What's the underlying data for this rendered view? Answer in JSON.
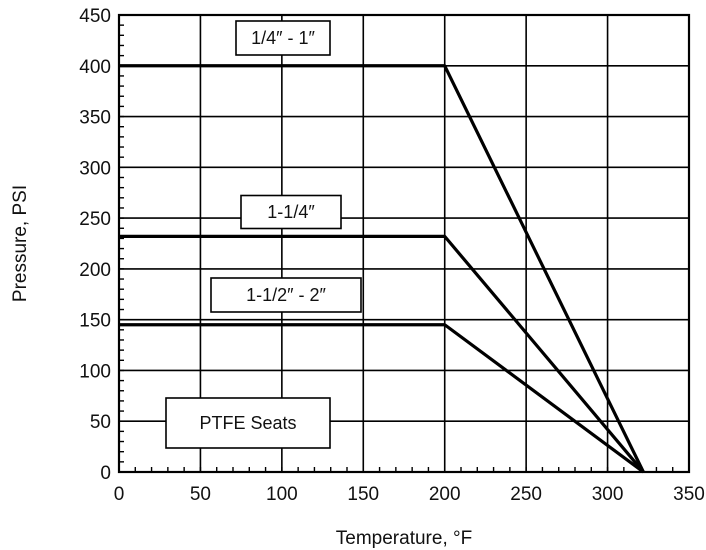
{
  "chart_data": {
    "type": "line",
    "xlabel": "Temperature, °F",
    "ylabel": "Pressure, PSI",
    "xlim": [
      0,
      350
    ],
    "ylim": [
      0,
      450
    ],
    "xticks": [
      0,
      50,
      100,
      150,
      200,
      250,
      300,
      350
    ],
    "yticks": [
      0,
      50,
      100,
      150,
      200,
      250,
      300,
      350,
      400,
      450
    ],
    "grid": true,
    "series": [
      {
        "name": "1/4″ - 1″",
        "x": [
          0,
          200,
          322
        ],
        "y": [
          400,
          400,
          0
        ]
      },
      {
        "name": "1-1/4″",
        "x": [
          0,
          200,
          322
        ],
        "y": [
          232,
          232,
          0
        ]
      },
      {
        "name": "1-1/2″ - 2″",
        "x": [
          0,
          200,
          322
        ],
        "y": [
          145,
          145,
          0
        ]
      }
    ],
    "annotations": [
      {
        "text": "PTFE Seats"
      }
    ]
  }
}
